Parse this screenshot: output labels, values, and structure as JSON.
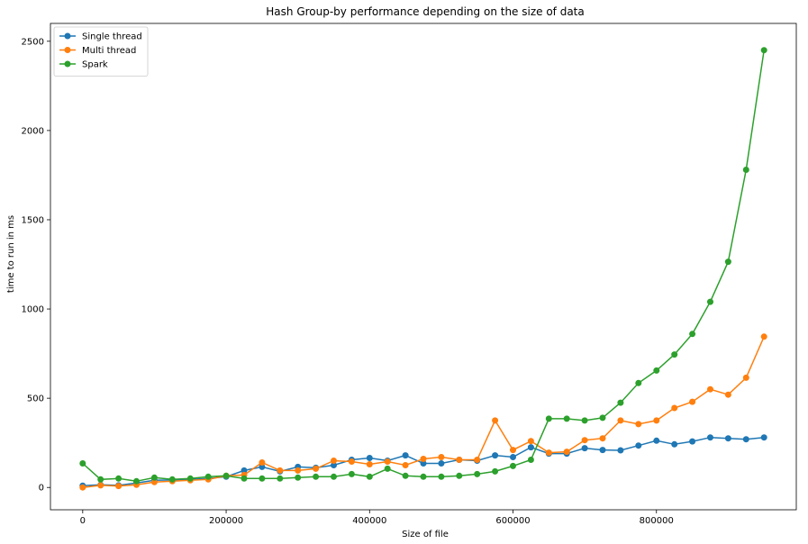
{
  "chart_data": {
    "type": "line",
    "title": "Hash Group-by performance depending on the size of data",
    "xlabel": "Size of file",
    "ylabel": "time to run in ms",
    "xlim": [
      -45000,
      995000
    ],
    "ylim": [
      -125,
      2600
    ],
    "xticks": [
      0,
      200000,
      400000,
      600000,
      800000
    ],
    "yticks": [
      0,
      500,
      1000,
      1500,
      2000,
      2500
    ],
    "grid": false,
    "legend_position": "top-left",
    "marker": "circle",
    "x": [
      0,
      25000,
      50000,
      75000,
      100000,
      125000,
      150000,
      175000,
      200000,
      225000,
      250000,
      275000,
      300000,
      325000,
      350000,
      375000,
      400000,
      425000,
      450000,
      475000,
      500000,
      525000,
      550000,
      575000,
      600000,
      625000,
      650000,
      675000,
      700000,
      725000,
      750000,
      775000,
      800000,
      825000,
      850000,
      875000,
      900000,
      925000,
      950000
    ],
    "series": [
      {
        "name": "Single thread",
        "color": "#1f77b4",
        "values": [
          10,
          15,
          12,
          25,
          40,
          42,
          45,
          50,
          60,
          95,
          115,
          90,
          115,
          110,
          125,
          155,
          165,
          150,
          180,
          135,
          135,
          155,
          150,
          180,
          170,
          225,
          190,
          190,
          220,
          210,
          208,
          235,
          262,
          242,
          258,
          280,
          275,
          270,
          280
        ]
      },
      {
        "name": "Multi thread",
        "color": "#ff7f0e",
        "values": [
          0,
          12,
          8,
          15,
          30,
          35,
          40,
          45,
          65,
          70,
          140,
          95,
          95,
          105,
          150,
          145,
          130,
          145,
          125,
          160,
          170,
          155,
          155,
          375,
          210,
          260,
          195,
          200,
          265,
          275,
          375,
          355,
          375,
          445,
          480,
          550,
          520,
          615,
          845
        ]
      },
      {
        "name": "Spark",
        "color": "#2ca02c",
        "values": [
          135,
          45,
          50,
          35,
          55,
          45,
          50,
          60,
          65,
          50,
          50,
          50,
          55,
          60,
          60,
          75,
          60,
          105,
          65,
          60,
          60,
          65,
          75,
          90,
          120,
          155,
          385,
          385,
          375,
          390,
          475,
          585,
          655,
          745,
          860,
          1040,
          1265,
          1780,
          2450
        ]
      }
    ]
  }
}
